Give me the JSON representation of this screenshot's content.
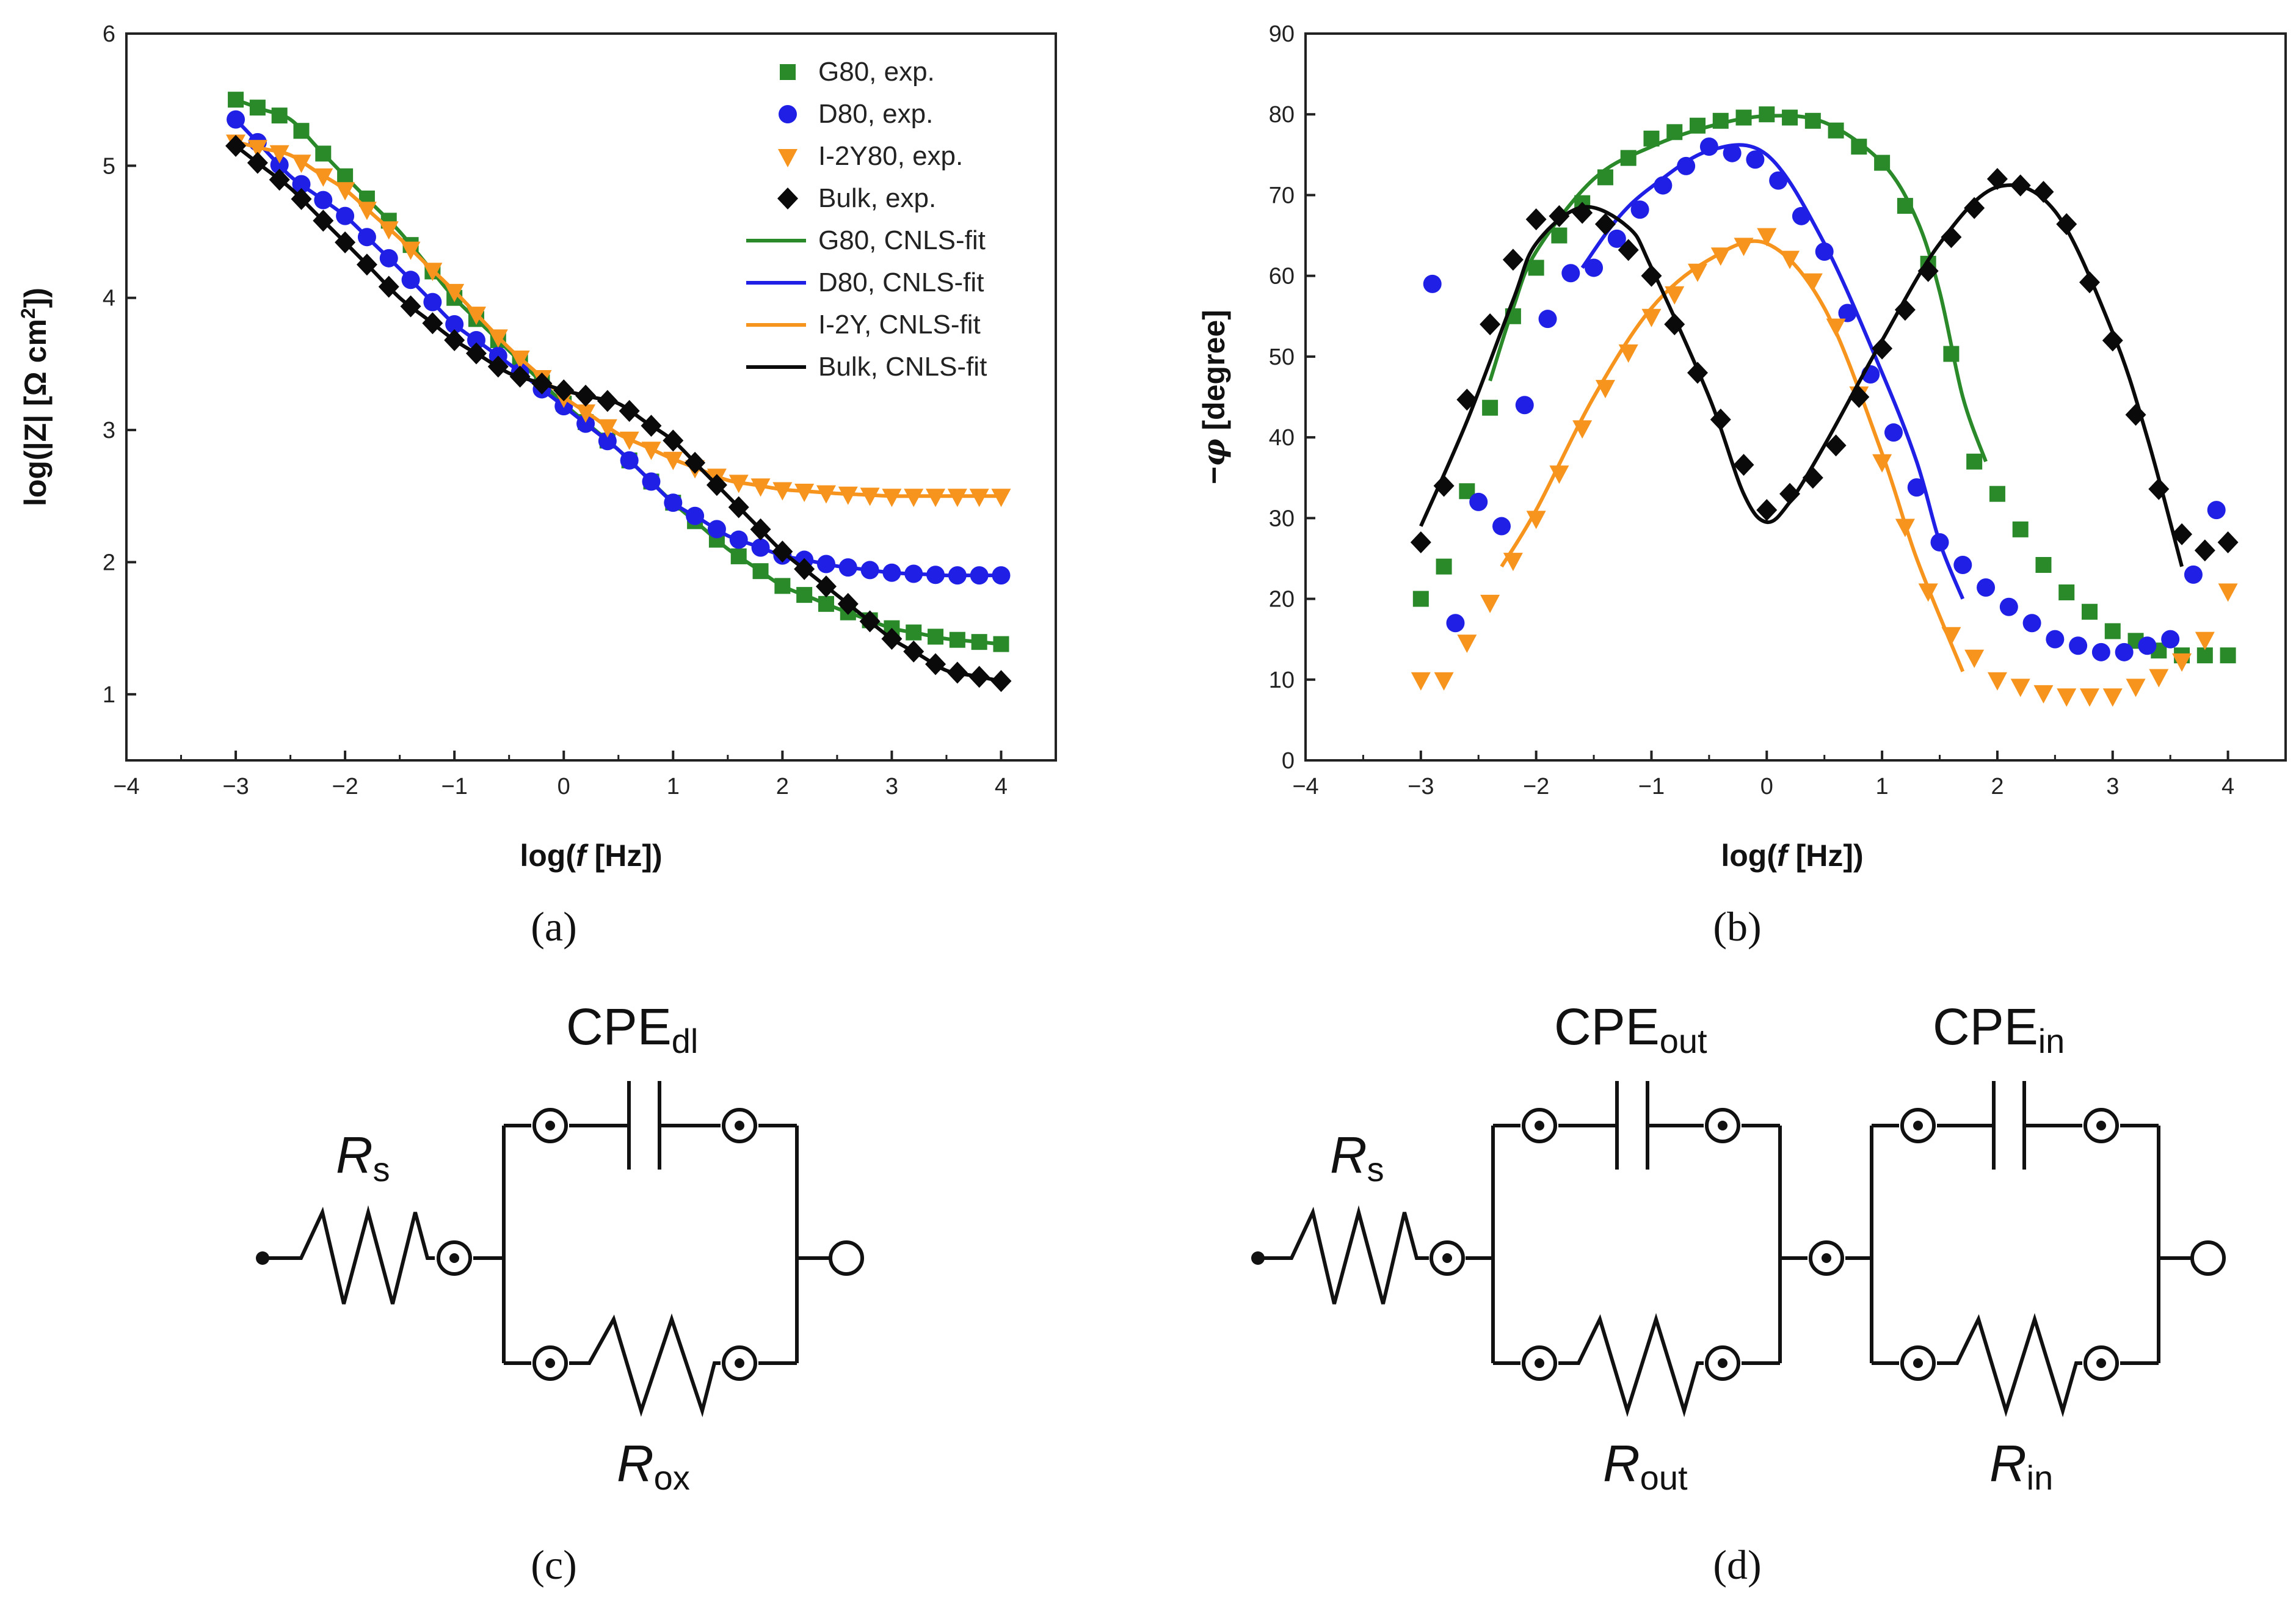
{
  "colors": {
    "G80": "#2a8a2a",
    "D80": "#1f1fe6",
    "I2Y80": "#f7941d",
    "Bulk": "#0a0a0a"
  },
  "captions": {
    "a": "(a)",
    "b": "(b)",
    "c": "(c)",
    "d": "(d)"
  },
  "chart_data": [
    {
      "id": "a",
      "type": "scatter",
      "title": "",
      "xlabel": "log(f [Hz])",
      "ylabel": "log(|Z| [Ω cm2])",
      "xlim": [
        -4,
        4.5
      ],
      "ylim": [
        0.5,
        6
      ],
      "xticks": [
        "−4",
        "−3",
        "−2",
        "−1",
        "0",
        "1",
        "2",
        "3",
        "4"
      ],
      "yticks": [
        "1",
        "2",
        "3",
        "4",
        "5",
        "6"
      ],
      "legend": [
        "G80, exp.",
        "D80, exp.",
        "I-2Y80, exp.",
        "Bulk, exp.",
        "G80, CNLS-fit",
        "D80, CNLS-fit",
        "I-2Y, CNLS-fit",
        "Bulk, CNLS-fit"
      ],
      "series": [
        {
          "name": "G80",
          "marker": "square",
          "anchors": [
            [
              -3,
              5.5
            ],
            [
              -2.5,
              5.35
            ],
            [
              -2,
              4.92
            ],
            [
              -1.5,
              4.5
            ],
            [
              -1,
              4.0
            ],
            [
              -0.5,
              3.6
            ],
            [
              0,
              3.2
            ],
            [
              0.5,
              2.85
            ],
            [
              1,
              2.45
            ],
            [
              1.5,
              2.1
            ],
            [
              2,
              1.82
            ],
            [
              2.5,
              1.65
            ],
            [
              3,
              1.5
            ],
            [
              3.5,
              1.42
            ],
            [
              4,
              1.38
            ]
          ]
        },
        {
          "name": "D80",
          "marker": "circle",
          "anchors": [
            [
              -3,
              5.35
            ],
            [
              -2.5,
              4.92
            ],
            [
              -2,
              4.62
            ],
            [
              -1.5,
              4.22
            ],
            [
              -1,
              3.8
            ],
            [
              -0.5,
              3.5
            ],
            [
              0,
              3.18
            ],
            [
              0.5,
              2.85
            ],
            [
              1,
              2.45
            ],
            [
              1.5,
              2.2
            ],
            [
              2,
              2.05
            ],
            [
              2.5,
              1.97
            ],
            [
              3,
              1.92
            ],
            [
              3.5,
              1.9
            ],
            [
              4,
              1.9
            ]
          ]
        },
        {
          "name": "I-2Y80",
          "marker": "triangle",
          "anchors": [
            [
              -3,
              5.18
            ],
            [
              -2.5,
              5.08
            ],
            [
              -2,
              4.82
            ],
            [
              -1.5,
              4.45
            ],
            [
              -1,
              4.05
            ],
            [
              -0.5,
              3.62
            ],
            [
              0,
              3.25
            ],
            [
              0.5,
              2.97
            ],
            [
              1,
              2.78
            ],
            [
              1.5,
              2.62
            ],
            [
              2,
              2.55
            ],
            [
              2.5,
              2.52
            ],
            [
              3,
              2.5
            ],
            [
              3.5,
              2.5
            ],
            [
              4,
              2.5
            ]
          ]
        },
        {
          "name": "Bulk",
          "marker": "diamond",
          "anchors": [
            [
              -3,
              5.15
            ],
            [
              -2.5,
              4.83
            ],
            [
              -2,
              4.42
            ],
            [
              -1.5,
              4.0
            ],
            [
              -1,
              3.68
            ],
            [
              -0.5,
              3.43
            ],
            [
              0,
              3.3
            ],
            [
              0.5,
              3.2
            ],
            [
              1,
              2.92
            ],
            [
              1.5,
              2.5
            ],
            [
              2,
              2.08
            ],
            [
              2.5,
              1.75
            ],
            [
              3,
              1.42
            ],
            [
              3.5,
              1.18
            ],
            [
              4,
              1.1
            ]
          ]
        }
      ]
    },
    {
      "id": "b",
      "type": "scatter",
      "title": "",
      "xlabel": "log(f [Hz])",
      "ylabel": "−φ [degree]",
      "xlim": [
        -4,
        4.5
      ],
      "ylim": [
        0,
        90
      ],
      "xticks": [
        "−4",
        "−3",
        "−2",
        "−1",
        "0",
        "1",
        "2",
        "3",
        "4"
      ],
      "yticks": [
        "0",
        "10",
        "20",
        "30",
        "40",
        "50",
        "60",
        "70",
        "80",
        "90"
      ],
      "series": [
        {
          "name": "G80",
          "marker": "square",
          "anchors": [
            [
              -3,
              20
            ],
            [
              -2.8,
              24
            ],
            [
              -2.5,
              38
            ],
            [
              -2.2,
              55
            ],
            [
              -2,
              61
            ],
            [
              -1.5,
              71
            ],
            [
              -1,
              77
            ],
            [
              -0.5,
              79
            ],
            [
              0,
              80
            ],
            [
              0.5,
              79
            ],
            [
              1,
              74
            ],
            [
              1.3,
              66
            ],
            [
              1.5,
              57
            ],
            [
              1.8,
              37
            ],
            [
              2,
              33
            ],
            [
              2.5,
              22
            ],
            [
              3,
              16
            ],
            [
              3.5,
              13
            ],
            [
              4,
              13
            ]
          ],
          "fit": [
            [
              -2.4,
              47
            ],
            [
              -2.2,
              56
            ],
            [
              -2,
              63
            ],
            [
              -1.5,
              72
            ],
            [
              -1,
              76
            ],
            [
              -0.5,
              78.5
            ],
            [
              0,
              79.8
            ],
            [
              0.5,
              79
            ],
            [
              1,
              74
            ],
            [
              1.3,
              67
            ],
            [
              1.5,
              58
            ],
            [
              1.7,
              45
            ],
            [
              1.9,
              37
            ]
          ]
        },
        {
          "name": "D80",
          "marker": "circle",
          "anchors": [
            [
              -2.9,
              59
            ],
            [
              -2.7,
              17
            ],
            [
              -2.5,
              32
            ],
            [
              -2.3,
              29
            ],
            [
              -2.1,
              44
            ],
            [
              -1.8,
              60
            ],
            [
              -1.5,
              61
            ],
            [
              -1,
              70
            ],
            [
              -0.5,
              76
            ],
            [
              0,
              74
            ],
            [
              0.5,
              63
            ],
            [
              1,
              44
            ],
            [
              1.5,
              27
            ],
            [
              2,
              20
            ],
            [
              2.5,
              15
            ],
            [
              3,
              13
            ],
            [
              3.5,
              15
            ],
            [
              3.9,
              31
            ]
          ],
          "fit": [
            [
              -1.6,
              61
            ],
            [
              -1.3,
              67
            ],
            [
              -1,
              71
            ],
            [
              -0.5,
              75.5
            ],
            [
              0,
              75
            ],
            [
              0.5,
              64
            ],
            [
              1,
              48
            ],
            [
              1.3,
              37
            ],
            [
              1.5,
              27
            ],
            [
              1.7,
              20
            ]
          ]
        },
        {
          "name": "I-2Y80",
          "marker": "triangle",
          "anchors": [
            [
              -3,
              10
            ],
            [
              -2.8,
              10
            ],
            [
              -2.5,
              17
            ],
            [
              -2,
              30
            ],
            [
              -1.5,
              44
            ],
            [
              -1,
              55
            ],
            [
              -0.5,
              62
            ],
            [
              0,
              65
            ],
            [
              0.5,
              58
            ],
            [
              1,
              37
            ],
            [
              1.5,
              17
            ],
            [
              2,
              10
            ],
            [
              2.5,
              8
            ],
            [
              3,
              8
            ],
            [
              3.5,
              11
            ],
            [
              3.8,
              15
            ],
            [
              4,
              21
            ]
          ],
          "fit": [
            [
              -2.3,
              24
            ],
            [
              -2,
              31
            ],
            [
              -1.5,
              45
            ],
            [
              -1,
              56
            ],
            [
              -0.5,
              62
            ],
            [
              0,
              64
            ],
            [
              0.5,
              56
            ],
            [
              1,
              38
            ],
            [
              1.3,
              25
            ],
            [
              1.7,
              11
            ]
          ]
        },
        {
          "name": "Bulk",
          "marker": "diamond",
          "anchors": [
            [
              -3,
              27
            ],
            [
              -2.8,
              34
            ],
            [
              -2.5,
              50
            ],
            [
              -2.2,
              62
            ],
            [
              -2,
              67
            ],
            [
              -1.5,
              68
            ],
            [
              -1,
              60
            ],
            [
              -0.5,
              45
            ],
            [
              0,
              31
            ],
            [
              0.5,
              36
            ],
            [
              1,
              51
            ],
            [
              1.5,
              63
            ],
            [
              2,
              72
            ],
            [
              2.5,
              70
            ],
            [
              3,
              52
            ],
            [
              3.5,
              29
            ],
            [
              3.8,
              26
            ],
            [
              4,
              27
            ]
          ],
          "fit": [
            [
              -3,
              29
            ],
            [
              -2.6,
              42
            ],
            [
              -2.2,
              57
            ],
            [
              -2,
              64
            ],
            [
              -1.6,
              68.5
            ],
            [
              -1.2,
              66
            ],
            [
              -1,
              61
            ],
            [
              -0.5,
              45
            ],
            [
              -0.2,
              33
            ],
            [
              0,
              29.5
            ],
            [
              0.2,
              32
            ],
            [
              0.5,
              39
            ],
            [
              1,
              52
            ],
            [
              1.5,
              64
            ],
            [
              2,
              71
            ],
            [
              2.5,
              68
            ],
            [
              3,
              53
            ],
            [
              3.3,
              40
            ],
            [
              3.6,
              24
            ]
          ]
        }
      ]
    }
  ],
  "circuit_c": {
    "rs_main": "R",
    "rs_sub": "s",
    "cpe_main": "CPE",
    "cpe_sub": "dl",
    "r_main": "R",
    "r_sub": "ox"
  },
  "circuit_d": {
    "rs_main": "R",
    "rs_sub": "s",
    "cpe1_main": "CPE",
    "cpe1_sub": "out",
    "cpe2_main": "CPE",
    "cpe2_sub": "in",
    "r1_main": "R",
    "r1_sub": "out",
    "r2_main": "R",
    "r2_sub": "in"
  }
}
